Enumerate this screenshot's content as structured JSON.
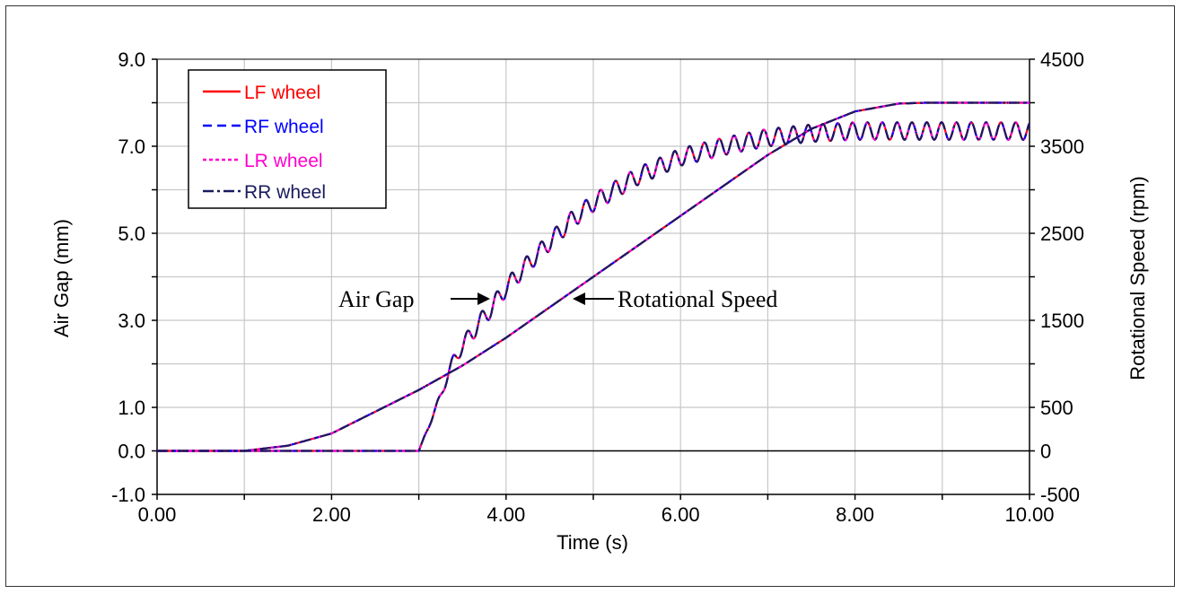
{
  "chart_data": {
    "type": "line",
    "title": "",
    "xlabel": "Time (s)",
    "ylabel_left": "Air Gap (mm)",
    "ylabel_right": "Rotational Speed (rpm)",
    "xlim": [
      0,
      10
    ],
    "ylim_left": [
      -1,
      9
    ],
    "ylim_right": [
      -500,
      4500
    ],
    "x_ticks": [
      0,
      1,
      2,
      3,
      4,
      5,
      6,
      7,
      8,
      9,
      10
    ],
    "x_tick_labels": [
      "0.00",
      "2.00",
      "4.00",
      "6.00",
      "8.00",
      "10.00"
    ],
    "x_tick_label_values": [
      0,
      2,
      4,
      6,
      8,
      10
    ],
    "y_left_tick_labels": [
      "9.0",
      "7.0",
      "5.0",
      "3.0",
      "1.0",
      "0.0",
      "-1.0"
    ],
    "y_left_tick_values": [
      9,
      7,
      5,
      3,
      1,
      0,
      -1
    ],
    "y_right_tick_labels": [
      "4500",
      "3500",
      "2500",
      "1500",
      "500",
      "0",
      "-500"
    ],
    "y_right_tick_values": [
      4500,
      3500,
      2500,
      1500,
      500,
      0,
      -500
    ],
    "grid": true,
    "legend_position": "top-left",
    "series": [
      {
        "name": "LF wheel",
        "color": "#ff0000",
        "dash": "solid"
      },
      {
        "name": "RF wheel",
        "color": "#0000ff",
        "dash": "dashed"
      },
      {
        "name": "LR wheel",
        "color": "#ff00cc",
        "dash": "dotted"
      },
      {
        "name": "RR wheel",
        "color": "#1a1a5e",
        "dash": "dashdot"
      }
    ],
    "air_gap_mm": {
      "x": [
        0,
        2.98,
        3.0,
        3.2,
        3.4,
        3.6,
        3.8,
        4.0,
        4.25,
        4.5,
        4.75,
        5.0,
        5.5,
        6.0,
        6.5,
        7.0,
        7.5,
        8.0,
        8.5,
        9.0,
        9.5,
        10.0
      ],
      "y": [
        0,
        0,
        0.0,
        1.0,
        2.1,
        2.7,
        3.2,
        3.75,
        4.3,
        4.8,
        5.3,
        5.7,
        6.3,
        6.75,
        7.0,
        7.2,
        7.3,
        7.35,
        7.35,
        7.35,
        7.35,
        7.35
      ],
      "oscillation_amplitude_mm": 0.2,
      "oscillation_period_s": 0.17
    },
    "rotational_speed_rpm": {
      "x": [
        0,
        1.0,
        1.5,
        2.0,
        2.5,
        3.0,
        3.5,
        4.0,
        4.5,
        5.0,
        5.5,
        6.0,
        6.5,
        7.0,
        7.5,
        8.0,
        8.5,
        8.8,
        9.0,
        10.0
      ],
      "y": [
        0,
        0,
        60,
        200,
        450,
        700,
        980,
        1300,
        1650,
        2000,
        2350,
        2700,
        3050,
        3400,
        3700,
        3900,
        3990,
        4000,
        4000,
        4000
      ]
    },
    "annotations": [
      {
        "text": "Air Gap",
        "arrow_to": "right",
        "x": 3.7,
        "y_mm": 3.5
      },
      {
        "text": "Rotational Speed",
        "arrow_to": "left",
        "x": 4.8,
        "y_mm": 3.6
      }
    ]
  }
}
